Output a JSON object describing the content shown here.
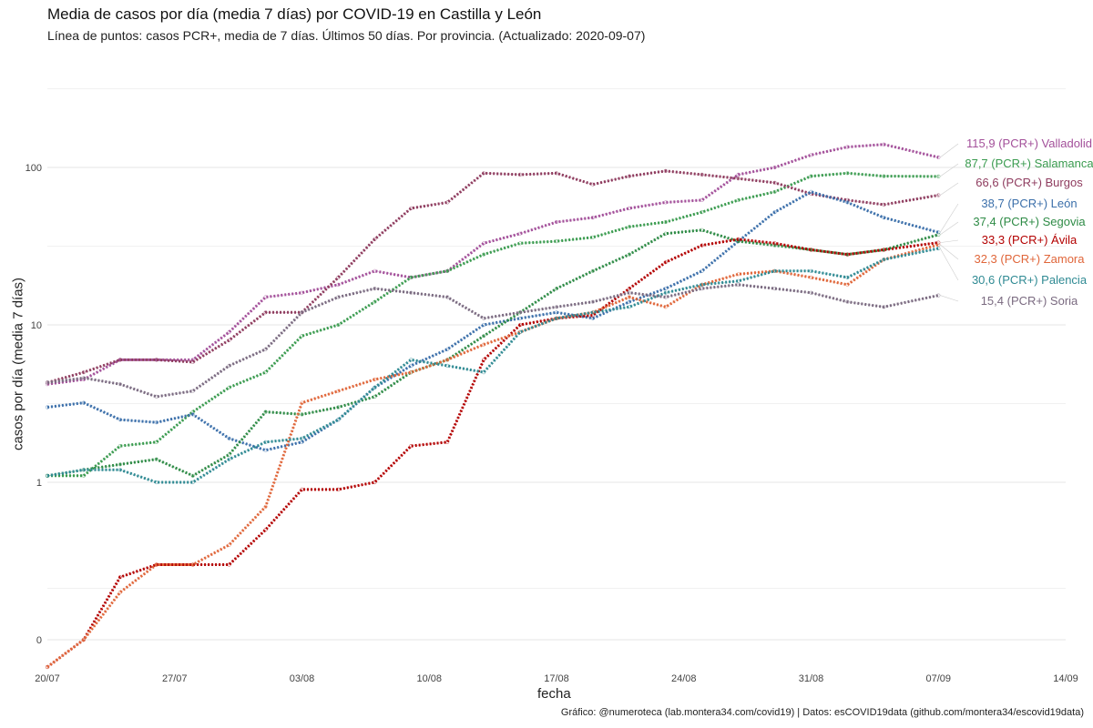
{
  "title": "Media de casos por día (media 7 días) por COVID-19 en Castilla y León",
  "subtitle": "Línea de puntos: casos PCR+, media de 7 días. Últimos 50 días. Por provincia. (Actualizado: 2020-09-07)",
  "caption": "Gráfico: @numeroteca (lab.montera34.com/covid19) | Datos: esCOVID19data (github.com/montera34/escovid19data)",
  "chart_data": {
    "type": "line",
    "title": "Media de casos por día (media 7 días) por COVID-19 en Castilla y León",
    "xlabel": "fecha",
    "ylabel": "casos por día (media 7 días)",
    "y_scale": "log",
    "x_ticks": [
      "20/07",
      "27/07",
      "03/08",
      "10/08",
      "17/08",
      "24/08",
      "31/08",
      "07/09",
      "14/09"
    ],
    "y_ticks": [
      "0",
      "1",
      "10",
      "100"
    ],
    "x_range": [
      "2020-07-20",
      "2020-09-14"
    ],
    "grid": true,
    "legend": "end-of-line labels",
    "dates": [
      "2020-07-20",
      "2020-07-22",
      "2020-07-24",
      "2020-07-26",
      "2020-07-28",
      "2020-07-30",
      "2020-08-01",
      "2020-08-03",
      "2020-08-05",
      "2020-08-07",
      "2020-08-09",
      "2020-08-11",
      "2020-08-13",
      "2020-08-15",
      "2020-08-17",
      "2020-08-19",
      "2020-08-21",
      "2020-08-23",
      "2020-08-25",
      "2020-08-27",
      "2020-08-29",
      "2020-08-31",
      "2020-09-02",
      "2020-09-04",
      "2020-09-07"
    ],
    "series": [
      {
        "name": "Valladolid",
        "label": "115,9 (PCR+) Valladolid",
        "color": "#a3509a",
        "values": [
          4.2,
          4.5,
          6,
          6,
          6,
          9,
          15,
          16,
          18,
          22,
          20,
          22,
          33,
          38,
          45,
          48,
          55,
          60,
          62,
          90,
          100,
          120,
          135,
          140,
          115.9
        ]
      },
      {
        "name": "Salamanca",
        "label": "87,7 (PCR+) Salamanca",
        "color": "#3a9b4f",
        "values": [
          1.1,
          1.1,
          1.7,
          1.8,
          2.8,
          4,
          5,
          8.5,
          10,
          14,
          20,
          22,
          28,
          33,
          34,
          36,
          42,
          45,
          52,
          62,
          70,
          88,
          92,
          88,
          87.7
        ]
      },
      {
        "name": "Burgos",
        "label": "66,6 (PCR+) Burgos",
        "color": "#8e3b5e",
        "values": [
          4.3,
          5,
          6,
          6,
          5.8,
          8,
          12,
          12,
          20,
          35,
          55,
          60,
          92,
          90,
          92,
          78,
          88,
          95,
          90,
          85,
          80,
          68,
          62,
          58,
          66.6
        ]
      },
      {
        "name": "León",
        "label": "38,7 (PCR+) León",
        "color": "#3b6faa",
        "values": [
          3,
          3.2,
          2.5,
          2.4,
          2.7,
          1.9,
          1.6,
          1.8,
          2.5,
          4,
          5.5,
          7,
          10,
          11,
          12,
          11,
          14,
          17,
          22,
          34,
          52,
          70,
          60,
          48,
          38.7
        ]
      },
      {
        "name": "Segovia",
        "label": "37,4 (PCR+) Segovia",
        "color": "#2e8b46",
        "values": [
          1.1,
          1.2,
          1.3,
          1.4,
          1.1,
          1.5,
          2.8,
          2.7,
          3,
          3.5,
          5,
          6,
          8.5,
          12,
          17,
          22,
          28,
          38,
          40,
          34,
          32,
          30,
          28,
          30,
          37.4
        ]
      },
      {
        "name": "Ávila",
        "label": "33,3 (PCR+) Ávila",
        "color": "#b30000",
        "values": [
          0.05,
          0.1,
          0.25,
          0.3,
          0.3,
          0.3,
          0.5,
          0.9,
          0.9,
          1,
          1.7,
          1.8,
          6,
          10,
          11,
          11.5,
          17,
          25,
          32,
          35,
          33,
          30,
          28,
          30,
          33.3
        ]
      },
      {
        "name": "Zamora",
        "label": "32,3 (PCR+) Zamora",
        "color": "#e0663a",
        "values": [
          0.05,
          0.1,
          0.2,
          0.3,
          0.3,
          0.4,
          0.7,
          3.2,
          3.8,
          4.5,
          5,
          6,
          7.5,
          9,
          11,
          12,
          15,
          13,
          18,
          21,
          22,
          20,
          18,
          26,
          32.3
        ]
      },
      {
        "name": "Palencia",
        "label": "30,6 (PCR+) Palencia",
        "color": "#2f8a93",
        "values": [
          1.1,
          1.2,
          1.2,
          1.0,
          1.0,
          1.4,
          1.8,
          1.9,
          2.5,
          4,
          6,
          5.5,
          5,
          9,
          11,
          12,
          13,
          16,
          18,
          19,
          22,
          22,
          20,
          26,
          30.6
        ]
      },
      {
        "name": "Soria",
        "label": "15,4 (PCR+) Soria",
        "color": "#7a6a80",
        "values": [
          4.3,
          4.6,
          4.2,
          3.5,
          3.8,
          5.5,
          7,
          12,
          15,
          17,
          16,
          15,
          11,
          12,
          13,
          14,
          16,
          15,
          17,
          18,
          17,
          16,
          14,
          13,
          15.4
        ]
      }
    ]
  }
}
